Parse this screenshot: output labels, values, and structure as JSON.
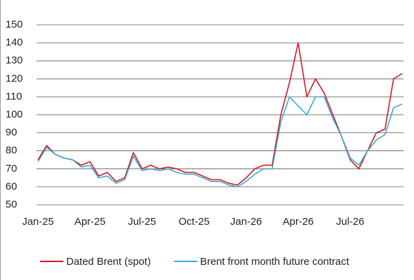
{
  "chart_data": {
    "type": "line",
    "categories": [
      "Jan-25",
      null,
      null,
      null,
      null,
      null,
      "Apr-25",
      null,
      null,
      null,
      null,
      null,
      "Jul-25",
      null,
      null,
      null,
      null,
      null,
      "Oct-25",
      null,
      null,
      null,
      null,
      null,
      "Jan-26",
      null,
      null,
      null,
      null,
      null,
      "Apr-26",
      null,
      null,
      null,
      null,
      null,
      "Jul-26",
      null,
      null,
      null,
      null,
      null,
      null
    ],
    "series": [
      {
        "name": "Dated Brent (spot)",
        "color": "#d7141e",
        "values": [
          75,
          83,
          78,
          76,
          75,
          72,
          74,
          66,
          68,
          63,
          65,
          79,
          70,
          72,
          70,
          71,
          70,
          68,
          68,
          66,
          64,
          64,
          62,
          61,
          65,
          70,
          72,
          72,
          100,
          118,
          140,
          110,
          120,
          112,
          100,
          88,
          75,
          70,
          80,
          90,
          92,
          120,
          123
        ]
      },
      {
        "name": "Brent front month future contract",
        "color": "#35aad8",
        "values": [
          74,
          82,
          78,
          76,
          75,
          71,
          72,
          65,
          66,
          62,
          64,
          77,
          69,
          70,
          69,
          70,
          68,
          67,
          67,
          65,
          63,
          63,
          61,
          60,
          63,
          67,
          70,
          70,
          96,
          110,
          105,
          100,
          110,
          110,
          98,
          88,
          76,
          72,
          80,
          86,
          89,
          104,
          106
        ]
      }
    ],
    "ylim": [
      50,
      150
    ],
    "yticks": [
      50,
      60,
      70,
      80,
      90,
      100,
      110,
      120,
      130,
      140,
      150
    ],
    "grid": true,
    "legend": "bottom"
  }
}
